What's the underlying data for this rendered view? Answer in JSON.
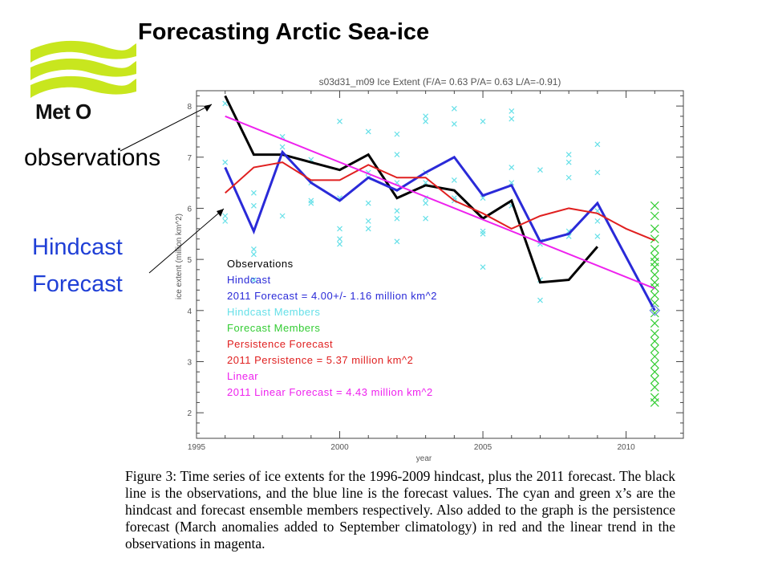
{
  "slide": {
    "title": "Forecasting Arctic Sea-ice",
    "logo_text": "Met O",
    "label_observations": "observations",
    "label_hindcast": "Hindcast",
    "label_forecast": "Forecast",
    "caption": "Figure 3: Time series of ice extents for the 1996-2009 hindcast, plus the 2011 forecast. The black line is the observations, and the blue line is the forecast values. The cyan and green x’s are the hindcast and forecast ensemble members respectively. Also added to the graph is the persistence forecast (March anomalies added to September climatology) in red and the linear trend in the observations in magenta.",
    "logo_color": "#c8e61e"
  },
  "chart_data": {
    "type": "line",
    "title": "s03d31_m09 Ice Extent (F/A= 0.63 P/A= 0.63 L/A=-0.91)",
    "xlabel": "year",
    "ylabel": "ice extent (million km^2)",
    "xlim": [
      1995,
      2012
    ],
    "ylim": [
      1.5,
      8.3
    ],
    "xticks": [
      1995,
      2000,
      2005,
      2010
    ],
    "yticks": [
      2,
      3,
      4,
      5,
      6,
      7,
      8
    ],
    "grid": false,
    "legend_position": "bottom-left",
    "legend": [
      {
        "text": "Observations",
        "color": "#000000"
      },
      {
        "text": "Hindcast",
        "color": "#2a2ad8"
      },
      {
        "text": "2011 Forecast =  4.00+/- 1.16 million km^2",
        "color": "#2a2ad8"
      },
      {
        "text": "Hindcast Members",
        "color": "#66e0e8"
      },
      {
        "text": "Forecast Members",
        "color": "#33cc33"
      },
      {
        "text": "Persistence Forecast",
        "color": "#e02020"
      },
      {
        "text": "2011 Persistence =  5.37 million km^2",
        "color": "#e02020"
      },
      {
        "text": "Linear",
        "color": "#ee22ee"
      },
      {
        "text": "2011 Linear Forecast =  4.43 million km^2",
        "color": "#ee22ee"
      }
    ],
    "series": [
      {
        "name": "Observations",
        "color": "#000000",
        "width": 3,
        "x": [
          1996,
          1997,
          1998,
          1999,
          2000,
          2001,
          2002,
          2003,
          2004,
          2005,
          2006,
          2007,
          2008,
          2009
        ],
        "y": [
          8.2,
          7.05,
          7.05,
          6.9,
          6.75,
          7.05,
          6.2,
          6.45,
          6.35,
          5.8,
          6.15,
          4.55,
          4.6,
          5.25
        ]
      },
      {
        "name": "Hindcast",
        "color": "#2a2ad8",
        "width": 3,
        "x": [
          1996,
          1997,
          1998,
          1999,
          2000,
          2001,
          2002,
          2003,
          2004,
          2005,
          2006,
          2007,
          2008,
          2009,
          2011
        ],
        "y": [
          6.8,
          5.55,
          7.1,
          6.5,
          6.15,
          6.6,
          6.35,
          6.7,
          7.0,
          6.25,
          6.45,
          5.35,
          5.5,
          6.1,
          4.0
        ]
      },
      {
        "name": "Persistence Forecast",
        "color": "#e02020",
        "width": 2,
        "x": [
          1996,
          1997,
          1998,
          1999,
          2000,
          2001,
          2002,
          2003,
          2004,
          2005,
          2006,
          2007,
          2008,
          2009,
          2010,
          2011
        ],
        "y": [
          6.3,
          6.8,
          6.9,
          6.55,
          6.55,
          6.85,
          6.6,
          6.6,
          6.15,
          5.9,
          5.6,
          5.85,
          6.0,
          5.9,
          5.6,
          5.37
        ]
      },
      {
        "name": "Linear",
        "color": "#ee22ee",
        "width": 2,
        "x": [
          1996,
          2011
        ],
        "y": [
          7.8,
          4.43
        ]
      }
    ],
    "hindcast_members": {
      "color": "#66e0e8",
      "points": [
        [
          1996,
          8.05
        ],
        [
          1996,
          6.9
        ],
        [
          1996,
          5.85
        ],
        [
          1996,
          5.75
        ],
        [
          1997,
          6.3
        ],
        [
          1997,
          5.2
        ],
        [
          1997,
          5.1
        ],
        [
          1997,
          4.6
        ],
        [
          1997,
          6.05
        ],
        [
          1998,
          7.4
        ],
        [
          1998,
          7.2
        ],
        [
          1998,
          5.85
        ],
        [
          1999,
          6.95
        ],
        [
          1999,
          6.5
        ],
        [
          1999,
          6.15
        ],
        [
          1999,
          6.1
        ],
        [
          2000,
          7.7
        ],
        [
          2000,
          5.6
        ],
        [
          2000,
          5.4
        ],
        [
          2000,
          5.3
        ],
        [
          2000,
          6.2
        ],
        [
          2001,
          7.5
        ],
        [
          2001,
          6.7
        ],
        [
          2001,
          6.6
        ],
        [
          2001,
          6.1
        ],
        [
          2001,
          5.75
        ],
        [
          2001,
          5.6
        ],
        [
          2002,
          7.45
        ],
        [
          2002,
          7.05
        ],
        [
          2002,
          6.5
        ],
        [
          2002,
          5.95
        ],
        [
          2002,
          5.8
        ],
        [
          2002,
          5.35
        ],
        [
          2003,
          7.8
        ],
        [
          2003,
          7.7
        ],
        [
          2003,
          6.7
        ],
        [
          2003,
          6.5
        ],
        [
          2003,
          6.2
        ],
        [
          2003,
          6.1
        ],
        [
          2003,
          5.8
        ],
        [
          2004,
          7.95
        ],
        [
          2004,
          7.65
        ],
        [
          2004,
          6.55
        ],
        [
          2004,
          6.2
        ],
        [
          2004,
          6.15
        ],
        [
          2005,
          7.7
        ],
        [
          2005,
          6.2
        ],
        [
          2005,
          5.55
        ],
        [
          2005,
          5.5
        ],
        [
          2005,
          4.85
        ],
        [
          2006,
          7.9
        ],
        [
          2006,
          7.75
        ],
        [
          2006,
          6.8
        ],
        [
          2006,
          6.5
        ],
        [
          2006,
          6.05
        ],
        [
          2007,
          6.75
        ],
        [
          2007,
          5.35
        ],
        [
          2007,
          5.3
        ],
        [
          2007,
          4.6
        ],
        [
          2007,
          4.2
        ],
        [
          2008,
          7.05
        ],
        [
          2008,
          6.9
        ],
        [
          2008,
          6.6
        ],
        [
          2008,
          5.55
        ],
        [
          2008,
          5.45
        ],
        [
          2009,
          7.25
        ],
        [
          2009,
          6.7
        ],
        [
          2009,
          5.95
        ],
        [
          2009,
          5.75
        ],
        [
          2009,
          5.45
        ]
      ]
    },
    "forecast_members": {
      "color": "#33cc33",
      "points": [
        [
          2011,
          6.05
        ],
        [
          2011,
          5.85
        ],
        [
          2011,
          5.6
        ],
        [
          2011,
          5.4
        ],
        [
          2011,
          5.2
        ],
        [
          2011,
          5.05
        ],
        [
          2011,
          4.95
        ],
        [
          2011,
          4.85
        ],
        [
          2011,
          4.7
        ],
        [
          2011,
          4.55
        ],
        [
          2011,
          4.45
        ],
        [
          2011,
          4.3
        ],
        [
          2011,
          4.15
        ],
        [
          2011,
          3.95
        ],
        [
          2011,
          3.75
        ],
        [
          2011,
          3.55
        ],
        [
          2011,
          3.4
        ],
        [
          2011,
          3.25
        ],
        [
          2011,
          3.1
        ],
        [
          2011,
          2.95
        ],
        [
          2011,
          2.8
        ],
        [
          2011,
          2.65
        ],
        [
          2011,
          2.5
        ],
        [
          2011,
          2.3
        ],
        [
          2011,
          2.2
        ]
      ]
    },
    "forecast_mean_marker": {
      "x": 2011,
      "y": 4.0,
      "color": "#6a8ae0"
    }
  }
}
